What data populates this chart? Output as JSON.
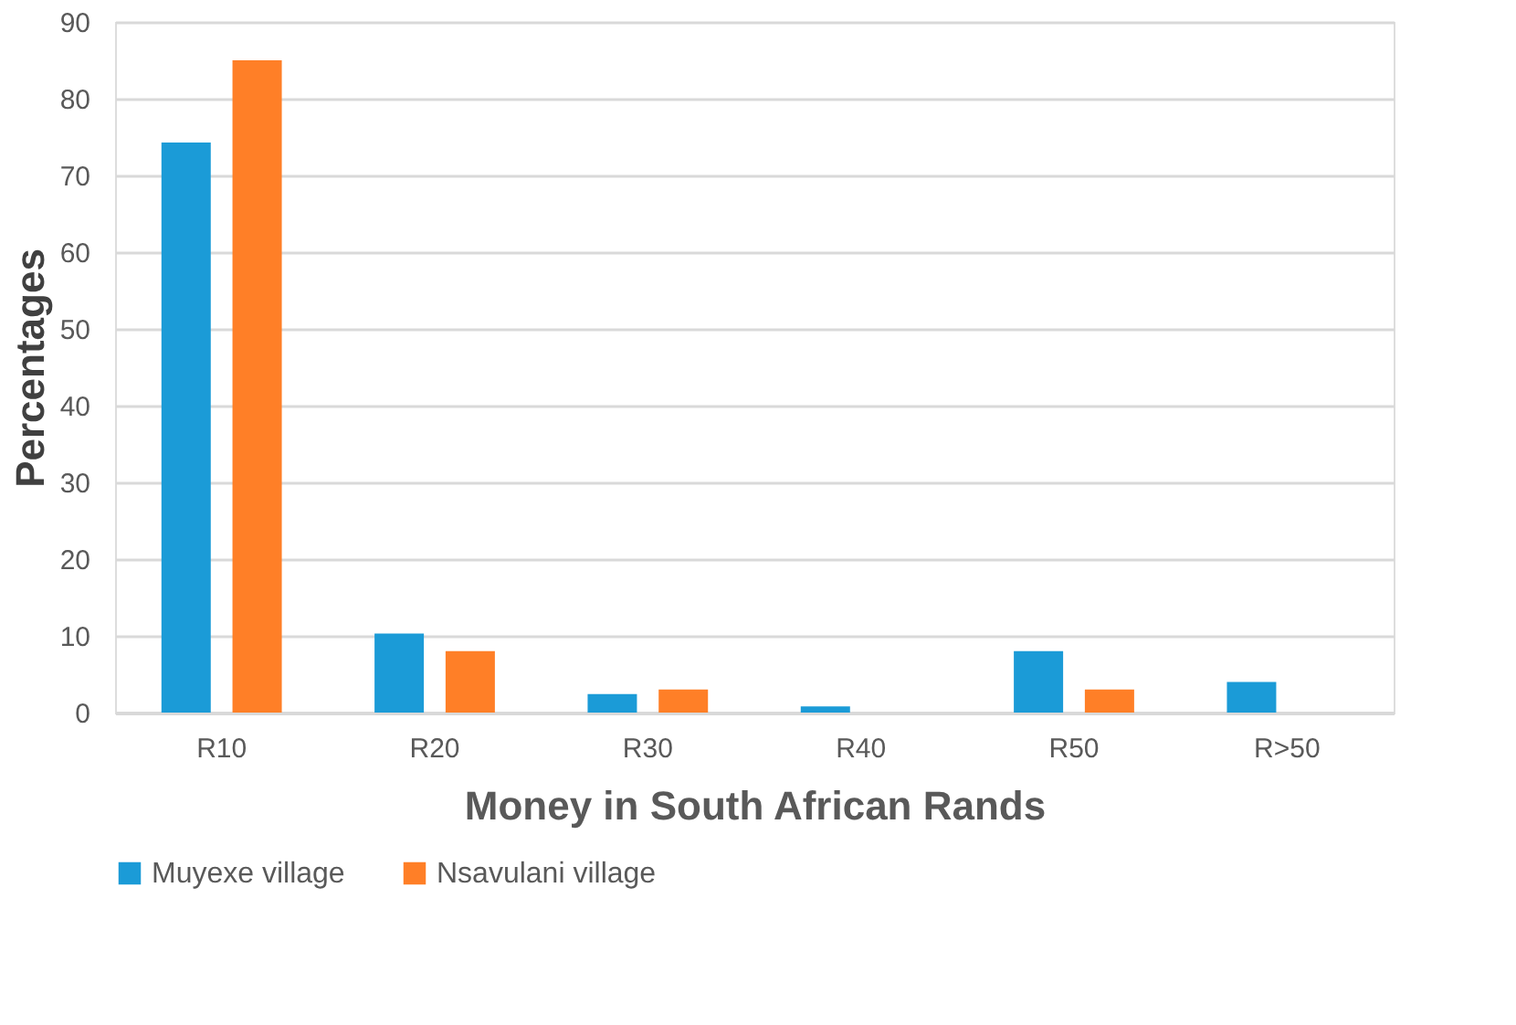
{
  "chart_data": {
    "type": "bar",
    "xlabel": "Money in South African Rands",
    "ylabel": "Percentages",
    "categories": [
      "R10",
      "R20",
      "R30",
      "R40",
      "R50",
      "R>50"
    ],
    "series": [
      {
        "name": "Muyexe village",
        "color": "#1b9bd7",
        "values": [
          74.3,
          10.3,
          2.4,
          0.8,
          8,
          4
        ]
      },
      {
        "name": "Nsavulani village",
        "color": "#ff7f27",
        "values": [
          85,
          8,
          3,
          0,
          3,
          0
        ]
      }
    ],
    "ylim": [
      0,
      90
    ],
    "yticks": [
      0,
      10,
      20,
      30,
      40,
      50,
      60,
      70,
      80,
      90
    ],
    "grid": "y",
    "legend": "bottom"
  }
}
